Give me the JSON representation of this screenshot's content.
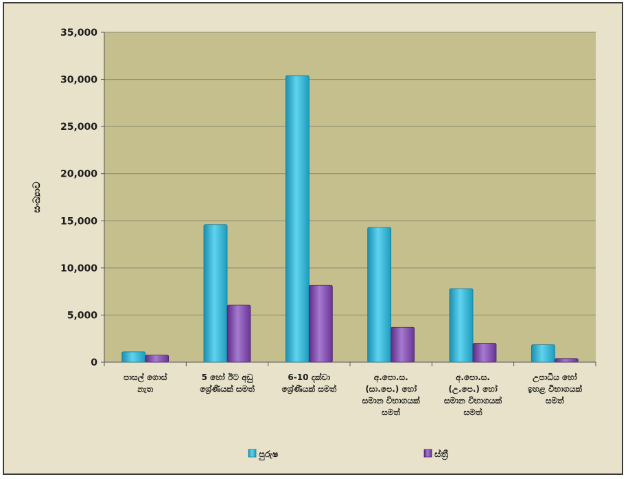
{
  "chart_data": {
    "type": "bar",
    "ylabel": "සංඛ්‍යාව",
    "xlabel": "",
    "title": "",
    "ylim": [
      0,
      35000
    ],
    "yticks": [
      0,
      5000,
      10000,
      15000,
      20000,
      25000,
      30000,
      35000
    ],
    "ytick_labels": [
      "0",
      "5,000",
      "10,000",
      "15,000",
      "20,000",
      "25,000",
      "30,000",
      "35,000"
    ],
    "categories": [
      [
        "පාසල් ගොස්",
        "නැත"
      ],
      [
        "5 හෝ ඊට අඩු",
        "ශ්‍රේණියක් සමත්"
      ],
      [
        "6-10 දක්වා",
        "ශ්‍රේණියක් සමත්"
      ],
      [
        "අ.පො.ස.",
        "(සා.පෙ.) හෝ",
        "සමාන විභාගයක්",
        "සමත්"
      ],
      [
        "අ.පො.ස.",
        "(උ.පෙ.) හෝ",
        "සමාන විභාගයක්",
        "සමත්"
      ],
      [
        "උපාධිය හෝ",
        "ඉහළ විභාගයක්",
        "සමත්"
      ]
    ],
    "series": [
      {
        "name": "පුරුෂ",
        "color": "#2bb5d6",
        "values": [
          1100,
          14600,
          30400,
          14300,
          7800,
          1850
        ]
      },
      {
        "name": "ස්ත්‍රී",
        "color": "#8248ad",
        "values": [
          750,
          6050,
          8150,
          3700,
          2000,
          380
        ]
      }
    ],
    "grid": true,
    "legend_position": "bottom",
    "plot_background": "#c5be8d",
    "frame_background": "#e7e2c9"
  }
}
